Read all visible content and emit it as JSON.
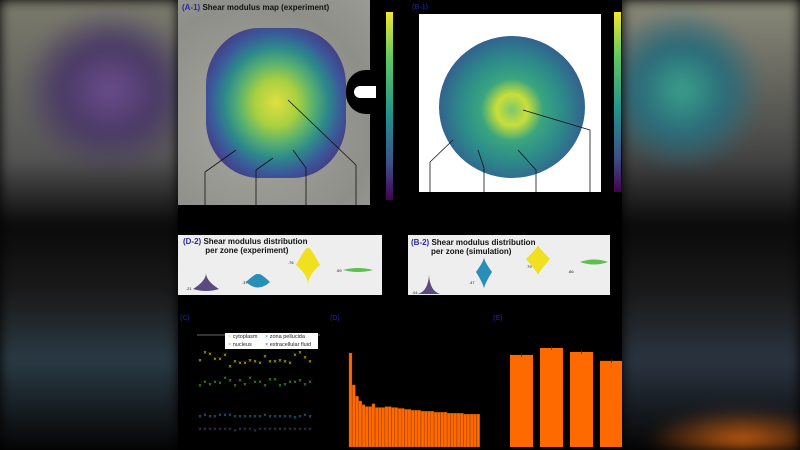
{
  "panels": {
    "a1": {
      "tag": "(A-1)",
      "title": "Shear modulus map (experiment)"
    },
    "b1": {
      "tag": "(B-1)"
    },
    "d2": {
      "tag": "(D-2)",
      "title_line1": "Shear modulus distribution",
      "title_line2": "per zone (experiment)",
      "medians": [
        ".21",
        ".37",
        ".76",
        ".59"
      ]
    },
    "b2": {
      "tag": "(B-2)",
      "title_line1": "Shear modulus distribution",
      "title_line2": "per zone (simulation)",
      "medians": [
        ".04",
        ".47",
        ".79",
        ".66"
      ]
    },
    "c": {
      "tag": "(C)"
    },
    "d": {
      "tag": "(D)"
    },
    "e": {
      "tag": "(E)"
    }
  },
  "colors": {
    "cytoplasm": "#f0e020",
    "nucleus": "#5cc050",
    "zona_pellucida": "#2a8fb8",
    "extracellular_fluid": "#5a4a80",
    "bar": "#ff6a00"
  },
  "chart_data": [
    {
      "type": "scatter",
      "legend": [
        "cytoplasm",
        "zona pellucida",
        "nucleus",
        "extracellular fluid"
      ],
      "legend_placement": "top",
      "series": [
        {
          "name": "cytoplasm",
          "values": [
            0.75,
            0.81,
            0.8,
            0.76,
            0.76,
            0.79,
            0.7,
            0.74,
            0.73,
            0.73,
            0.75,
            0.74,
            0.73,
            0.78,
            0.74,
            0.74,
            0.75,
            0.74,
            0.73,
            0.79,
            0.81,
            0.77,
            0.74
          ]
        },
        {
          "name": "nucleus",
          "values": [
            0.55,
            0.58,
            0.56,
            0.58,
            0.57,
            0.61,
            0.59,
            0.55,
            0.59,
            0.56,
            0.61,
            0.58,
            0.58,
            0.55,
            0.6,
            0.6,
            0.55,
            0.56,
            0.58,
            0.58,
            0.59,
            0.56,
            0.58
          ]
        },
        {
          "name": "zona pellucida",
          "values": [
            0.31,
            0.32,
            0.31,
            0.31,
            0.32,
            0.32,
            0.32,
            0.31,
            0.31,
            0.31,
            0.31,
            0.31,
            0.31,
            0.32,
            0.31,
            0.31,
            0.31,
            0.31,
            0.31,
            0.3,
            0.31,
            0.32,
            0.31
          ]
        },
        {
          "name": "extracellular fluid",
          "values": [
            0.21,
            0.21,
            0.21,
            0.21,
            0.21,
            0.21,
            0.21,
            0.2,
            0.21,
            0.21,
            0.21,
            0.2,
            0.21,
            0.21,
            0.21,
            0.21,
            0.21,
            0.21,
            0.21,
            0.21,
            0.21,
            0.21,
            0.21
          ]
        }
      ]
    },
    {
      "type": "bar",
      "values": [
        1.0,
        0.66,
        0.54,
        0.49,
        0.45,
        0.43,
        0.43,
        0.46,
        0.42,
        0.42,
        0.42,
        0.43,
        0.43,
        0.42,
        0.42,
        0.41,
        0.41,
        0.4,
        0.4,
        0.39,
        0.39,
        0.39,
        0.38,
        0.38,
        0.38,
        0.38,
        0.37,
        0.37,
        0.37,
        0.37,
        0.36,
        0.36,
        0.36,
        0.36,
        0.36,
        0.35,
        0.35,
        0.35,
        0.35,
        0.35
      ]
    },
    {
      "type": "bar",
      "values": [
        0.93,
        1.0,
        0.96,
        0.87
      ],
      "error_bars": true
    }
  ]
}
